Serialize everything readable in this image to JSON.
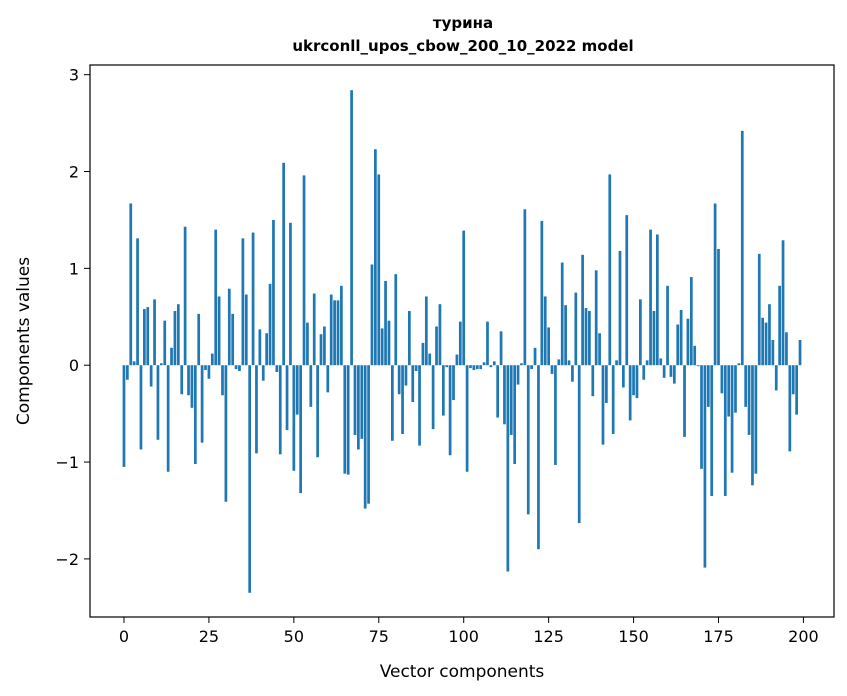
{
  "chart_data": {
    "type": "bar",
    "title": "турина",
    "subtitle": "ukrconll_upos_cbow_200_10_2022 model",
    "xlabel": "Vector components",
    "ylabel": "Components values",
    "xlim": [
      -10,
      209
    ],
    "ylim": [
      -2.6,
      3.1
    ],
    "xticks": [
      0,
      25,
      50,
      75,
      100,
      125,
      150,
      175,
      200
    ],
    "xtick_labels": [
      "0",
      "25",
      "50",
      "75",
      "100",
      "125",
      "150",
      "175",
      "200"
    ],
    "yticks": [
      -2,
      -1,
      0,
      1,
      2,
      3
    ],
    "ytick_labels": [
      "−2",
      "−1",
      "0",
      "1",
      "2",
      "3"
    ],
    "grid": false,
    "bar_color": "#1f77b4",
    "values": [
      -1.05,
      -0.15,
      1.67,
      0.04,
      1.31,
      -0.87,
      0.58,
      0.6,
      -0.22,
      0.68,
      -0.77,
      0.02,
      0.46,
      -1.1,
      0.18,
      0.56,
      0.63,
      -0.3,
      1.43,
      -0.31,
      -0.44,
      -1.02,
      0.53,
      -0.8,
      -0.05,
      -0.14,
      0.12,
      1.4,
      0.71,
      -0.31,
      -1.41,
      0.79,
      0.53,
      -0.04,
      -0.06,
      1.31,
      0.73,
      -2.35,
      1.37,
      -0.91,
      0.37,
      -0.16,
      0.33,
      0.84,
      1.5,
      -0.07,
      -0.92,
      2.09,
      -0.67,
      1.47,
      -1.09,
      -0.51,
      -1.32,
      1.96,
      0.44,
      -0.43,
      0.74,
      -0.95,
      0.32,
      0.4,
      -0.28,
      0.73,
      0.67,
      0.67,
      0.82,
      -1.12,
      -1.13,
      2.84,
      -0.72,
      -0.87,
      -0.76,
      -1.48,
      -1.43,
      1.04,
      2.23,
      1.97,
      0.38,
      0.87,
      0.46,
      -0.78,
      0.94,
      -0.3,
      -0.71,
      -0.21,
      0.56,
      -0.38,
      -0.06,
      -0.83,
      0.23,
      0.71,
      0.12,
      -0.66,
      0.4,
      0.63,
      -0.52,
      -0.02,
      -0.93,
      -0.36,
      0.11,
      0.45,
      1.39,
      -1.1,
      -0.03,
      -0.05,
      -0.04,
      -0.04,
      0.03,
      0.45,
      -0.02,
      0.04,
      -0.54,
      0.35,
      -0.61,
      -2.13,
      -0.72,
      -1.02,
      -0.2,
      0.02,
      1.61,
      -1.54,
      -0.04,
      0.18,
      -1.9,
      1.49,
      0.71,
      0.39,
      -0.09,
      -1.03,
      0.06,
      1.06,
      0.62,
      0.05,
      -0.17,
      0.75,
      -1.63,
      1.14,
      0.59,
      0.56,
      -0.32,
      0.98,
      0.33,
      -0.82,
      -0.39,
      1.97,
      -0.71,
      0.05,
      1.18,
      -0.23,
      1.55,
      -0.57,
      -0.31,
      -0.34,
      0.68,
      -0.15,
      0.05,
      1.4,
      0.56,
      1.35,
      0.07,
      -0.13,
      0.82,
      -0.12,
      -0.19,
      0.42,
      0.57,
      -0.74,
      0.48,
      0.91,
      0.2,
      -0.01,
      -1.07,
      -2.09,
      -0.43,
      -1.35,
      1.67,
      1.2,
      -0.29,
      -1.35,
      -0.53,
      -1.11,
      -0.49,
      0.02,
      2.42,
      -0.43,
      -0.72,
      -1.24,
      -1.12,
      1.15,
      0.49,
      0.44,
      0.63,
      0.26,
      -0.26,
      0.82,
      1.29,
      0.34,
      -0.89,
      -0.3,
      -0.51,
      0.26
    ]
  }
}
